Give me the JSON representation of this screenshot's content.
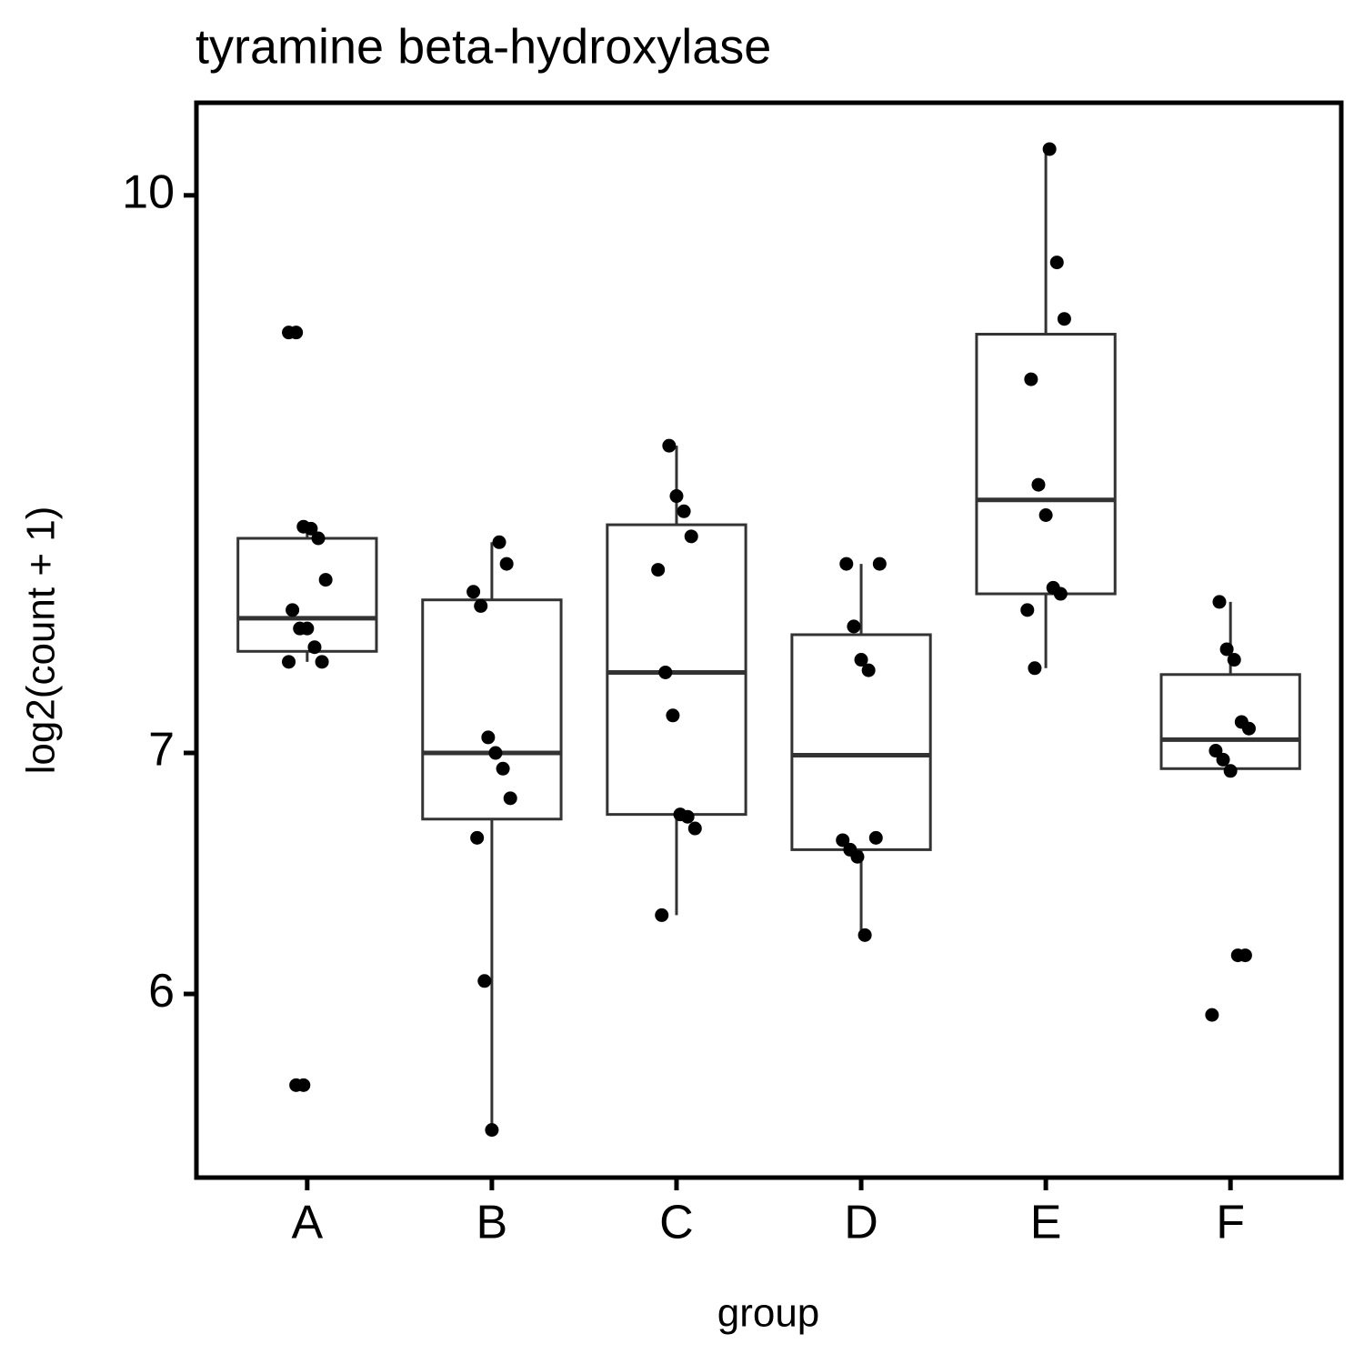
{
  "chart_data": {
    "type": "box",
    "title": "tyramine beta-hydroxylase",
    "x_label": "group",
    "y_label": "log2(count + 1)",
    "y_scale": "log",
    "categories": [
      "A",
      "B",
      "C",
      "D",
      "E",
      "F"
    ],
    "whisker_low": [
      7.42,
      5.5,
      6.31,
      6.23,
      7.39,
      6.92
    ],
    "q1": [
      7.47,
      6.71,
      6.73,
      6.58,
      7.75,
      6.93
    ],
    "median": [
      7.63,
      7.0,
      7.37,
      6.99,
      8.23,
      7.06
    ],
    "q3": [
      8.03,
      7.72,
      8.1,
      7.55,
      9.15,
      7.36
    ],
    "whisker_high": [
      8.09,
      8.01,
      8.52,
      7.9,
      10.3,
      7.71
    ],
    "points": [
      [
        9.16,
        9.16,
        8.09,
        8.08,
        8.03,
        7.82,
        7.67,
        7.58,
        7.58,
        7.49,
        7.42,
        7.42,
        5.66,
        5.66
      ],
      [
        8.01,
        7.9,
        7.76,
        7.69,
        7.07,
        7.0,
        6.93,
        6.8,
        6.63,
        6.05,
        5.5
      ],
      [
        8.52,
        8.25,
        8.17,
        8.04,
        7.87,
        7.37,
        7.17,
        6.73,
        6.72,
        6.67,
        6.31
      ],
      [
        7.9,
        7.9,
        7.59,
        7.43,
        7.38,
        6.63,
        6.62,
        6.58,
        6.55,
        6.23
      ],
      [
        10.3,
        9.58,
        9.24,
        8.89,
        8.31,
        8.15,
        7.78,
        7.75,
        7.67,
        7.39
      ],
      [
        7.71,
        7.48,
        7.43,
        7.14,
        7.11,
        7.01,
        6.97,
        6.92,
        6.15,
        6.15,
        5.92
      ]
    ],
    "box_color": "#333333",
    "point_color": "#000000",
    "ylim": [
      5.335,
      10.61
    ],
    "yticks": [
      6,
      7,
      10
    ],
    "grid": false
  }
}
